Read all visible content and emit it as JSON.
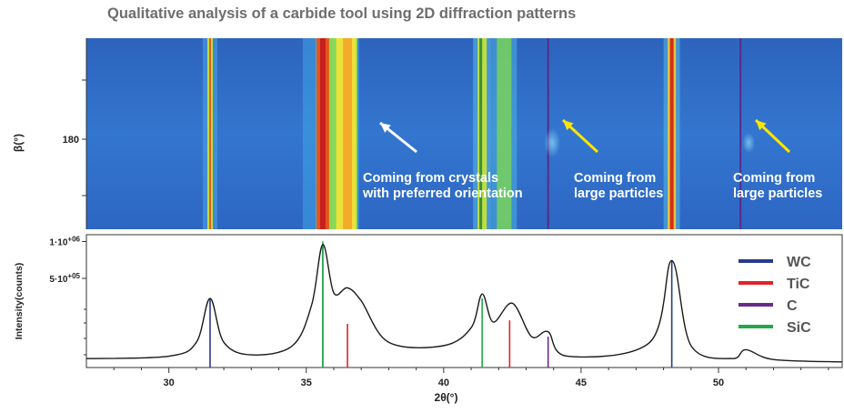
{
  "title": "Qualitative analysis of a carbide tool using 2D diffraction patterns",
  "annotations": [
    {
      "line1": "Coming from crystals",
      "line2": "with preferred orientation",
      "arrow_color": "#ffffff"
    },
    {
      "line1": "Coming from",
      "line2": "large particles",
      "arrow_color": "#ffe600"
    },
    {
      "line1": "Coming from",
      "line2": "large particles",
      "arrow_color": "#ffe600"
    }
  ],
  "colors": {
    "WC": "#283a8f",
    "TiC": "#e2232b",
    "C": "#6a2a8c",
    "SiC": "#22a84a",
    "curve": "#1a1a1a",
    "image_bg": "#2f6fc9"
  },
  "chart_data": [
    {
      "type": "heatmap",
      "ylabel": "β(°)",
      "yticks": [
        "180"
      ],
      "x_range": [
        27,
        54.5
      ],
      "intense_rings_at_2theta": [
        31.5,
        35.6,
        36.5,
        41.4,
        42.2,
        48.3
      ],
      "vertical_lines_at_2theta": [
        43.8,
        50.8
      ]
    },
    {
      "type": "line",
      "title": "",
      "xlabel": "2θ(°)",
      "ylabel": "Intensity(counts)",
      "xlim": [
        27,
        54.5
      ],
      "x_ticks": [
        30,
        35,
        40,
        45,
        50
      ],
      "y_tick_labels": [
        "1·10+06",
        "5·10+05"
      ],
      "y_tick_values": [
        1000000,
        500000
      ],
      "x": [
        27.0,
        30.0,
        31.0,
        31.5,
        32.0,
        33.0,
        34.5,
        35.2,
        35.6,
        36.0,
        36.5,
        37.0,
        38.0,
        40.0,
        41.0,
        41.4,
        41.8,
        42.5,
        43.2,
        43.8,
        44.5,
        47.5,
        48.3,
        49.0,
        50.5,
        51.0,
        52.0,
        54.5
      ],
      "y": [
        5000,
        8000,
        40000,
        300000,
        40000,
        10000,
        30000,
        250000,
        950000,
        350000,
        400000,
        280000,
        40000,
        30000,
        100000,
        340000,
        130000,
        260000,
        60000,
        80000,
        8000,
        40000,
        720000,
        30000,
        5000,
        20000,
        4000,
        2000
      ],
      "series": [
        {
          "name": "WC",
          "color": "#283a8f",
          "peaks": [
            {
              "x": 31.5,
              "v": 300000
            },
            {
              "x": 35.6,
              "v": 950000
            },
            {
              "x": 48.3,
              "v": 720000
            }
          ]
        },
        {
          "name": "TiC",
          "color": "#e2232b",
          "peaks": [
            {
              "x": 36.5,
              "v": 120000
            },
            {
              "x": 42.4,
              "v": 140000
            }
          ]
        },
        {
          "name": "C",
          "color": "#6a2a8c",
          "peaks": [
            {
              "x": 43.8,
              "v": 60000
            }
          ]
        },
        {
          "name": "SiC",
          "color": "#22a84a",
          "peaks": [
            {
              "x": 35.6,
              "v": 1000000
            },
            {
              "x": 41.4,
              "v": 300000
            }
          ]
        }
      ],
      "legend": [
        "WC",
        "TiC",
        "C",
        "SiC"
      ],
      "legend_position": "top-right"
    }
  ]
}
